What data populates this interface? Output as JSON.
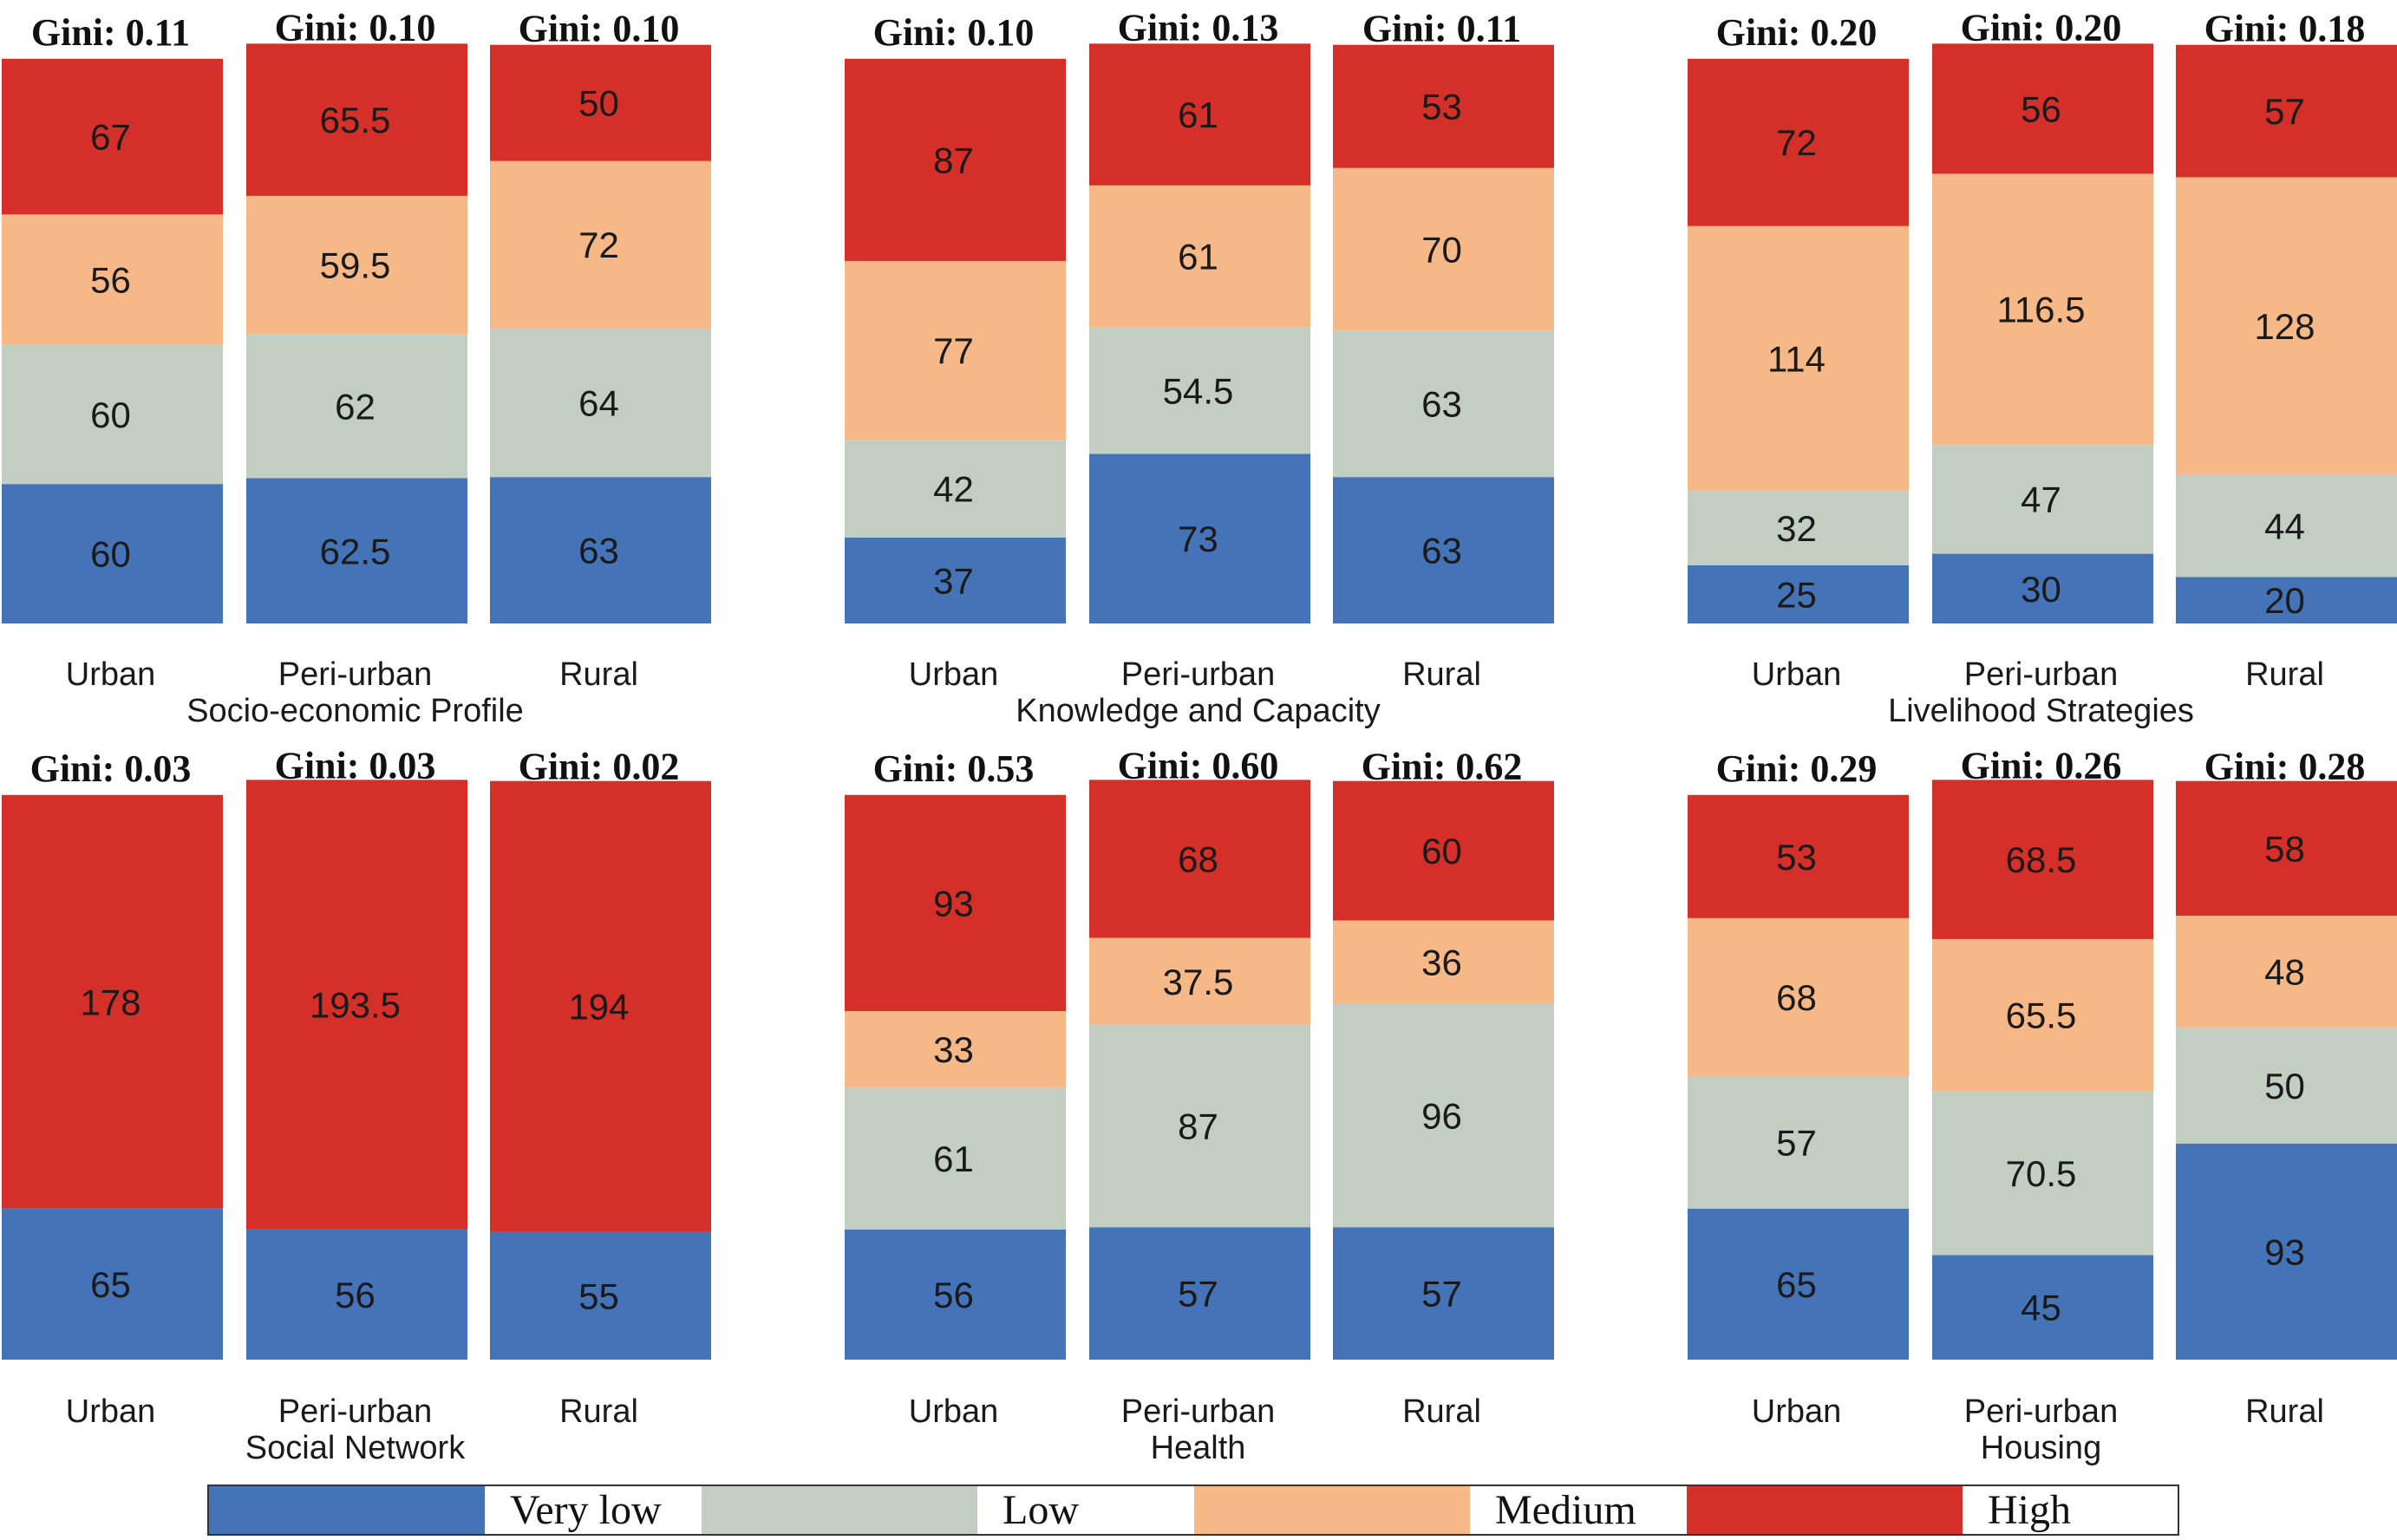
{
  "colors": {
    "very_low": "#4573b8",
    "low": "#c3cec2",
    "medium": "#f7b888",
    "high": "#d52f29"
  },
  "legend": {
    "entries": [
      {
        "key": "very_low",
        "label": "Very low"
      },
      {
        "key": "low",
        "label": "Low"
      },
      {
        "key": "medium",
        "label": "Medium"
      },
      {
        "key": "high",
        "label": "High"
      }
    ]
  },
  "chart_data": [
    {
      "type": "bar",
      "stacked": true,
      "title": "Socio-economic Profile",
      "categories": [
        "Urban",
        "Peri-urban",
        "Rural"
      ],
      "gini": [
        "Gini: 0.11",
        "Gini: 0.10",
        "Gini: 0.10"
      ],
      "series": [
        {
          "name": "Very low",
          "key": "very_low",
          "values": [
            60,
            62.5,
            63
          ]
        },
        {
          "name": "Low",
          "key": "low",
          "values": [
            60,
            62,
            64
          ]
        },
        {
          "name": "Medium",
          "key": "medium",
          "values": [
            56,
            59.5,
            72
          ]
        },
        {
          "name": "High",
          "key": "high",
          "values": [
            67,
            65.5,
            50
          ]
        }
      ]
    },
    {
      "type": "bar",
      "stacked": true,
      "title": "Knowledge and Capacity",
      "categories": [
        "Urban",
        "Peri-urban",
        "Rural"
      ],
      "gini": [
        "Gini: 0.10",
        "Gini: 0.13",
        "Gini: 0.11"
      ],
      "series": [
        {
          "name": "Very low",
          "key": "very_low",
          "values": [
            37,
            73,
            63
          ]
        },
        {
          "name": "Low",
          "key": "low",
          "values": [
            42,
            54.5,
            63
          ]
        },
        {
          "name": "Medium",
          "key": "medium",
          "values": [
            77,
            61,
            70
          ]
        },
        {
          "name": "High",
          "key": "high",
          "values": [
            87,
            61,
            53
          ]
        }
      ]
    },
    {
      "type": "bar",
      "stacked": true,
      "title": "Livelihood Strategies",
      "categories": [
        "Urban",
        "Peri-urban",
        "Rural"
      ],
      "gini": [
        "Gini: 0.20",
        "Gini: 0.20",
        "Gini: 0.18"
      ],
      "series": [
        {
          "name": "Very low",
          "key": "very_low",
          "values": [
            25,
            30,
            20
          ]
        },
        {
          "name": "Low",
          "key": "low",
          "values": [
            32,
            47,
            44
          ]
        },
        {
          "name": "Medium",
          "key": "medium",
          "values": [
            114,
            116.5,
            128
          ]
        },
        {
          "name": "High",
          "key": "high",
          "values": [
            72,
            56,
            57
          ]
        }
      ]
    },
    {
      "type": "bar",
      "stacked": true,
      "title": "Social Network",
      "categories": [
        "Urban",
        "Peri-urban",
        "Rural"
      ],
      "gini": [
        "Gini: 0.03",
        "Gini: 0.03",
        "Gini: 0.02"
      ],
      "series": [
        {
          "name": "Very low",
          "key": "very_low",
          "values": [
            65,
            56,
            55
          ]
        },
        {
          "name": "High",
          "key": "high",
          "values": [
            178,
            193.5,
            194
          ]
        }
      ]
    },
    {
      "type": "bar",
      "stacked": true,
      "title": "Health",
      "categories": [
        "Urban",
        "Peri-urban",
        "Rural"
      ],
      "gini": [
        "Gini: 0.53",
        "Gini: 0.60",
        "Gini: 0.62"
      ],
      "series": [
        {
          "name": "Very low",
          "key": "very_low",
          "values": [
            56,
            57,
            57
          ]
        },
        {
          "name": "Low",
          "key": "low",
          "values": [
            61,
            87,
            96
          ]
        },
        {
          "name": "Medium",
          "key": "medium",
          "values": [
            33,
            37.5,
            36
          ]
        },
        {
          "name": "High",
          "key": "high",
          "values": [
            93,
            68,
            60
          ]
        }
      ]
    },
    {
      "type": "bar",
      "stacked": true,
      "title": "Housing",
      "categories": [
        "Urban",
        "Peri-urban",
        "Rural"
      ],
      "gini": [
        "Gini: 0.29",
        "Gini: 0.26",
        "Gini: 0.28"
      ],
      "series": [
        {
          "name": "Very low",
          "key": "very_low",
          "values": [
            65,
            45,
            93
          ]
        },
        {
          "name": "Low",
          "key": "low",
          "values": [
            57,
            70.5,
            50
          ]
        },
        {
          "name": "Medium",
          "key": "medium",
          "values": [
            68,
            65.5,
            48
          ]
        },
        {
          "name": "High",
          "key": "high",
          "values": [
            53,
            68.5,
            58
          ]
        }
      ]
    }
  ]
}
